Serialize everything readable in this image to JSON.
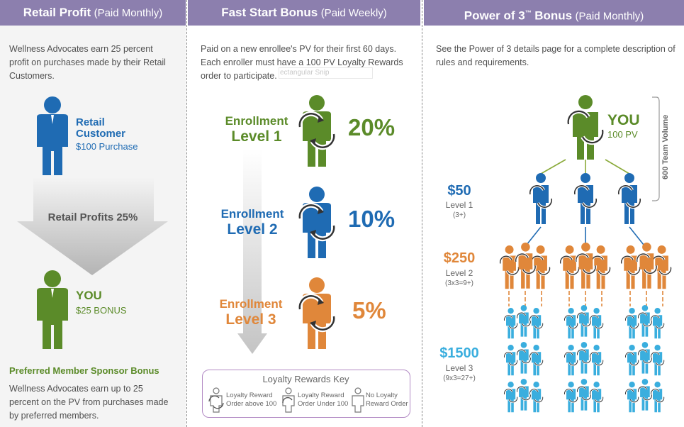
{
  "retail": {
    "title": "Retail Profit",
    "subtitle": "(Paid Monthly)",
    "intro": "Wellness Advocates earn 25 percent profit on purchases made by their Retail Customers.",
    "customer_line1": "Retail",
    "customer_line2": "Customer",
    "purchase": "$100 Purchase",
    "arrow_label": "Retail Profits 25%",
    "you_label": "YOU",
    "bonus": "$25 BONUS",
    "sponsor_title": "Preferred Member Sponsor Bonus",
    "sponsor_text": "Wellness Advocates earn up to 25 percent on the PV from purchases made by preferred members."
  },
  "fast_start": {
    "title": "Fast Start Bonus",
    "subtitle": "(Paid Weekly)",
    "intro": "Paid on a new enrollee's PV for their first 60 days. Each enroller must have a 100 PV Loyalty Rewards order to participate.",
    "overlay_text": "ectangular Snip",
    "levels": [
      {
        "line1": "Enrollment",
        "line2": "Level 1",
        "percent": "20%"
      },
      {
        "line1": "Enrollment",
        "line2": "Level 2",
        "percent": "10%"
      },
      {
        "line1": "Enrollment",
        "line2": "Level 3",
        "percent": "5%"
      }
    ],
    "key": {
      "title": "Loyalty Rewards Key",
      "items": [
        {
          "line1": "Loyalty Reward",
          "line2": "Order above 100"
        },
        {
          "line1": "Loyalty Reward",
          "line2": "Order Under 100"
        },
        {
          "line1": "No Loyalty",
          "line2": "Reward Order"
        }
      ]
    }
  },
  "power3": {
    "title": "Power of 3",
    "tm": "™",
    "title_suffix": "Bonus",
    "subtitle": "(Paid Monthly)",
    "intro": "See the Power of 3 details page for a complete description of rules and requirements.",
    "you_label": "YOU",
    "you_pv": "100 PV",
    "team_volume": "600 Team Volume",
    "levels": [
      {
        "amount": "$50",
        "name": "Level 1",
        "rule": "(3+)"
      },
      {
        "amount": "$250",
        "name": "Level 2",
        "rule": "(3x3=9+)"
      },
      {
        "amount": "$1500",
        "name": "Level 3",
        "rule": "(9x3=27+)"
      }
    ]
  },
  "colors": {
    "header": "#8c7fae",
    "green": "#5b8b29",
    "blue": "#1f6bb3",
    "orange": "#e0873a",
    "cyan": "#3aaede",
    "key_border": "#b28ac4"
  }
}
